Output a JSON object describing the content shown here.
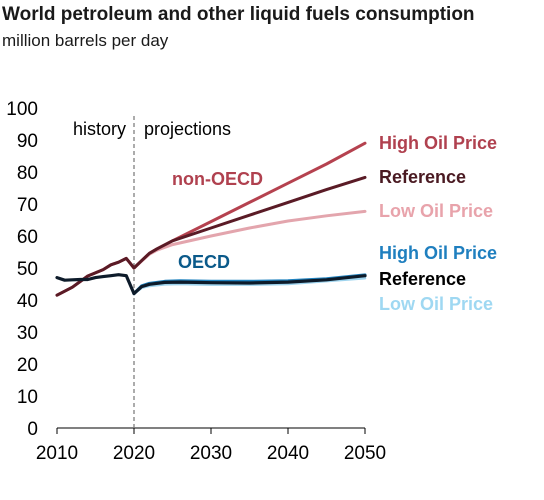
{
  "chart_data": {
    "type": "line",
    "title": "World petroleum and other liquid fuels consumption",
    "subtitle": "million barrels per day",
    "xlim": [
      2010,
      2050
    ],
    "ylim": [
      0,
      100
    ],
    "x_ticks": [
      "2010",
      "2020",
      "2030",
      "2040",
      "2050"
    ],
    "y_ticks": [
      "0",
      "10",
      "20",
      "30",
      "40",
      "50",
      "60",
      "70",
      "80",
      "90",
      "100"
    ],
    "grid": false,
    "divider_year": 2020,
    "regions": {
      "left": "history",
      "right": "projections"
    },
    "group_labels": [
      {
        "text": "non-OECD",
        "color": "#b0414f"
      },
      {
        "text": "OECD",
        "color": "#0b5a8a"
      }
    ],
    "series": [
      {
        "name": "High Oil Price",
        "group": "non-OECD",
        "color": "#b5424f",
        "label_color": "#b0414f",
        "points": [
          [
            2010,
            41.5
          ],
          [
            2012,
            44
          ],
          [
            2014,
            47.5
          ],
          [
            2016,
            49.5
          ],
          [
            2017,
            51
          ],
          [
            2018,
            51.8
          ],
          [
            2019,
            53
          ],
          [
            2020,
            50
          ],
          [
            2021,
            52.3
          ],
          [
            2022,
            54.6
          ],
          [
            2023,
            56
          ],
          [
            2025,
            58.5
          ],
          [
            2030,
            64.5
          ],
          [
            2035,
            70.5
          ],
          [
            2040,
            76.5
          ],
          [
            2045,
            82.5
          ],
          [
            2050,
            89
          ]
        ]
      },
      {
        "name": "Reference",
        "group": "non-OECD",
        "color": "#5a1b26",
        "label_color": "#4a1a22",
        "points": [
          [
            2010,
            41.5
          ],
          [
            2012,
            44
          ],
          [
            2014,
            47.5
          ],
          [
            2016,
            49.5
          ],
          [
            2017,
            51
          ],
          [
            2018,
            51.8
          ],
          [
            2019,
            53
          ],
          [
            2020,
            50
          ],
          [
            2021,
            52.3
          ],
          [
            2022,
            54.6
          ],
          [
            2023,
            56
          ],
          [
            2025,
            58.5
          ],
          [
            2030,
            62.5
          ],
          [
            2035,
            66.5
          ],
          [
            2040,
            70.5
          ],
          [
            2045,
            74.5
          ],
          [
            2050,
            78.3
          ]
        ]
      },
      {
        "name": "Low Oil Price",
        "group": "non-OECD",
        "color": "#e3a5ad",
        "label_color": "#e8a3ab",
        "points": [
          [
            2020,
            50
          ],
          [
            2021,
            52.2
          ],
          [
            2022,
            54.3
          ],
          [
            2023,
            55.6
          ],
          [
            2025,
            57.3
          ],
          [
            2030,
            60
          ],
          [
            2035,
            62.5
          ],
          [
            2040,
            64.7
          ],
          [
            2045,
            66.3
          ],
          [
            2050,
            67.7
          ]
        ]
      },
      {
        "name": "High Oil Price",
        "group": "OECD",
        "color": "#1f82bf",
        "label_color": "#1f7fbf",
        "points": [
          [
            2020,
            42
          ],
          [
            2021,
            44.4
          ],
          [
            2022,
            45.2
          ],
          [
            2024,
            45.8
          ],
          [
            2026,
            46
          ],
          [
            2028,
            45.9
          ],
          [
            2030,
            45.8
          ],
          [
            2035,
            45.8
          ],
          [
            2040,
            46
          ],
          [
            2045,
            46.6
          ],
          [
            2050,
            47.8
          ]
        ]
      },
      {
        "name": "Reference",
        "group": "OECD",
        "color": "#0d1b2a",
        "label_color": "#000000",
        "points": [
          [
            2010,
            47
          ],
          [
            2011,
            46.2
          ],
          [
            2012,
            46.3
          ],
          [
            2013,
            46.4
          ],
          [
            2014,
            46.4
          ],
          [
            2015,
            47
          ],
          [
            2016,
            47.3
          ],
          [
            2017,
            47.6
          ],
          [
            2018,
            47.9
          ],
          [
            2019,
            47.6
          ],
          [
            2020,
            42
          ],
          [
            2021,
            44.2
          ],
          [
            2022,
            44.9
          ],
          [
            2024,
            45.5
          ],
          [
            2026,
            45.6
          ],
          [
            2028,
            45.5
          ],
          [
            2030,
            45.4
          ],
          [
            2035,
            45.3
          ],
          [
            2040,
            45.6
          ],
          [
            2045,
            46.3
          ],
          [
            2050,
            47.6
          ]
        ]
      },
      {
        "name": "Low Oil Price",
        "group": "OECD",
        "color": "#9fd4ee",
        "label_color": "#9fd8f2",
        "points": [
          [
            2020,
            42
          ],
          [
            2021,
            43.8
          ],
          [
            2022,
            44.4
          ],
          [
            2024,
            44.9
          ],
          [
            2026,
            45
          ],
          [
            2028,
            44.9
          ],
          [
            2030,
            44.8
          ],
          [
            2035,
            44.8
          ],
          [
            2040,
            45
          ],
          [
            2045,
            45.9
          ],
          [
            2050,
            46.8
          ]
        ]
      }
    ]
  }
}
